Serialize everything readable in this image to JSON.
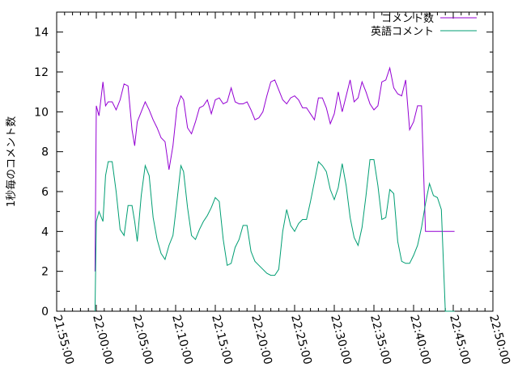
{
  "chart_data": {
    "type": "line",
    "ylabel": "1秒毎のコメント数",
    "xlabel": "",
    "title": "",
    "ylim": [
      0,
      15
    ],
    "xlim": [
      "21:55:00",
      "22:50:00"
    ],
    "x_ticks": [
      "21:55:00",
      "22:00:00",
      "22:05:00",
      "22:10:00",
      "22:15:00",
      "22:20:00",
      "22:25:00",
      "22:30:00",
      "22:35:00",
      "22:40:00",
      "22:45:00",
      "22:50:00"
    ],
    "y_ticks": [
      "0",
      "2",
      "4",
      "6",
      "8",
      "10",
      "12",
      "14"
    ],
    "grid": false,
    "legend_position": "top-right",
    "series": [
      {
        "name": "コメント数",
        "color": "#9400d3",
        "x": [
          "21:59:50",
          "22:00:00",
          "22:00:20",
          "22:00:50",
          "22:01:10",
          "22:01:30",
          "22:02:00",
          "22:02:30",
          "22:03:00",
          "22:03:30",
          "22:04:00",
          "22:04:30",
          "22:04:50",
          "22:05:10",
          "22:05:40",
          "22:06:10",
          "22:06:40",
          "22:07:10",
          "22:07:40",
          "22:08:10",
          "22:08:40",
          "22:09:10",
          "22:09:40",
          "22:10:10",
          "22:10:40",
          "22:11:00",
          "22:11:30",
          "22:12:00",
          "22:12:30",
          "22:13:00",
          "22:13:30",
          "22:14:00",
          "22:14:30",
          "22:15:00",
          "22:15:30",
          "22:16:00",
          "22:16:30",
          "22:17:00",
          "22:17:30",
          "22:18:00",
          "22:18:30",
          "22:19:00",
          "22:19:30",
          "22:20:00",
          "22:20:30",
          "22:21:00",
          "22:21:30",
          "22:22:00",
          "22:22:30",
          "22:23:00",
          "22:23:30",
          "22:24:00",
          "22:24:30",
          "22:25:00",
          "22:25:30",
          "22:26:00",
          "22:26:30",
          "22:27:00",
          "22:27:30",
          "22:28:00",
          "22:28:30",
          "22:29:00",
          "22:29:30",
          "22:30:00",
          "22:30:30",
          "22:31:00",
          "22:31:30",
          "22:32:00",
          "22:32:30",
          "22:33:00",
          "22:33:30",
          "22:34:00",
          "22:34:30",
          "22:35:00",
          "22:35:30",
          "22:36:00",
          "22:36:30",
          "22:37:00",
          "22:37:30",
          "22:38:00",
          "22:38:30",
          "22:39:00",
          "22:39:30",
          "22:40:00",
          "22:40:30",
          "22:41:00",
          "22:41:30",
          "22:42:00",
          "22:42:30",
          "22:43:00",
          "22:43:30",
          "22:44:00",
          "22:44:30",
          "22:45:00",
          "22:45:10"
        ],
        "values": [
          2,
          10.3,
          9.8,
          11.5,
          10.3,
          10.5,
          10.5,
          10.1,
          10.6,
          11.4,
          11.3,
          9.1,
          8.3,
          9.5,
          10.0,
          10.5,
          10.1,
          9.6,
          9.2,
          8.7,
          8.5,
          7.1,
          8.3,
          10.2,
          10.8,
          10.6,
          9.2,
          8.9,
          9.5,
          10.2,
          10.3,
          10.6,
          9.9,
          10.6,
          10.7,
          10.4,
          10.5,
          11.2,
          10.5,
          10.4,
          10.4,
          10.5,
          10.1,
          9.6,
          9.7,
          10.0,
          10.8,
          11.5,
          11.6,
          11.1,
          10.6,
          10.4,
          10.7,
          10.8,
          10.6,
          10.2,
          10.2,
          9.9,
          9.6,
          10.7,
          10.7,
          10.2,
          9.4,
          9.9,
          11.0,
          10.0,
          10.8,
          11.6,
          10.5,
          10.7,
          11.5,
          11.0,
          10.4,
          10.1,
          10.3,
          11.5,
          11.6,
          12.2,
          11.2,
          10.9,
          10.8,
          11.6,
          9.1,
          9.5,
          10.3,
          10.3,
          4.0,
          4.0,
          4.0,
          4.0,
          4.0,
          4.0,
          4.0,
          4.0,
          4.0
        ]
      },
      {
        "name": "英語コメント",
        "color": "#009e73",
        "x": [
          "21:59:50",
          "22:00:00",
          "22:00:20",
          "22:00:50",
          "22:01:10",
          "22:01:30",
          "22:02:00",
          "22:02:30",
          "22:03:00",
          "22:03:30",
          "22:04:00",
          "22:04:30",
          "22:04:50",
          "22:05:10",
          "22:05:40",
          "22:06:10",
          "22:06:40",
          "22:07:10",
          "22:07:40",
          "22:08:10",
          "22:08:40",
          "22:09:10",
          "22:09:40",
          "22:10:10",
          "22:10:40",
          "22:11:00",
          "22:11:30",
          "22:12:00",
          "22:12:30",
          "22:13:00",
          "22:13:30",
          "22:14:00",
          "22:14:30",
          "22:15:00",
          "22:15:30",
          "22:16:00",
          "22:16:30",
          "22:17:00",
          "22:17:30",
          "22:18:00",
          "22:18:30",
          "22:19:00",
          "22:19:30",
          "22:20:00",
          "22:20:30",
          "22:21:00",
          "22:21:30",
          "22:22:00",
          "22:22:30",
          "22:23:00",
          "22:23:30",
          "22:24:00",
          "22:24:30",
          "22:25:00",
          "22:25:30",
          "22:26:00",
          "22:26:30",
          "22:27:00",
          "22:27:30",
          "22:28:00",
          "22:28:30",
          "22:29:00",
          "22:29:30",
          "22:30:00",
          "22:30:30",
          "22:31:00",
          "22:31:30",
          "22:32:00",
          "22:32:30",
          "22:33:00",
          "22:33:30",
          "22:34:00",
          "22:34:30",
          "22:35:00",
          "22:35:30",
          "22:36:00",
          "22:36:30",
          "22:37:00",
          "22:37:30",
          "22:38:00",
          "22:38:30",
          "22:39:00",
          "22:39:30",
          "22:40:00",
          "22:40:30",
          "22:41:00",
          "22:41:30",
          "22:42:00",
          "22:42:30",
          "22:43:00",
          "22:43:30",
          "22:44:00",
          "22:44:30",
          "22:45:00",
          "22:45:10"
        ],
        "values": [
          0,
          4.5,
          5.0,
          4.5,
          6.8,
          7.5,
          7.5,
          6.0,
          4.1,
          3.8,
          5.3,
          5.3,
          4.5,
          3.5,
          5.8,
          7.3,
          6.8,
          4.7,
          3.6,
          2.9,
          2.6,
          3.3,
          3.8,
          5.5,
          7.3,
          7.0,
          5.2,
          3.8,
          3.6,
          4.1,
          4.5,
          4.8,
          5.2,
          5.7,
          5.5,
          3.6,
          2.3,
          2.4,
          3.2,
          3.6,
          4.3,
          4.3,
          3.0,
          2.5,
          2.3,
          2.1,
          1.9,
          1.8,
          1.8,
          2.1,
          4.0,
          5.1,
          4.3,
          4.0,
          4.4,
          4.6,
          4.6,
          5.5,
          6.5,
          7.5,
          7.3,
          7.0,
          6.1,
          5.6,
          6.2,
          7.4,
          6.3,
          4.7,
          3.7,
          3.3,
          4.2,
          5.8,
          7.6,
          7.6,
          6.3,
          4.6,
          4.7,
          6.1,
          5.9,
          3.5,
          2.5,
          2.4,
          2.4,
          2.8,
          3.3,
          4.2,
          5.4,
          6.4,
          5.8,
          5.7,
          5.1,
          0,
          0,
          0,
          0
        ]
      }
    ]
  }
}
